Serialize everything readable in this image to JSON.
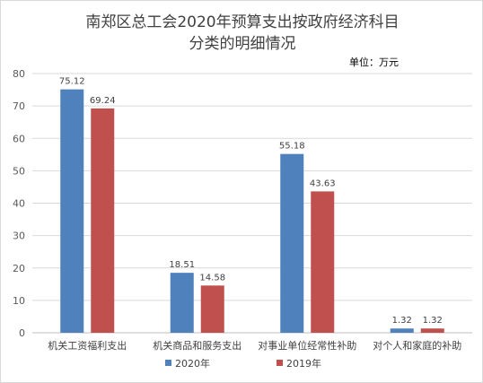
{
  "chart_data": {
    "type": "bar",
    "title_lines": [
      "南郑区总工会2020年预算支出按政府经济科目",
      "分类的明细情况"
    ],
    "unit_label": "单位：万元",
    "categories": [
      "机关工资福利支出",
      "机关商品和服务支出",
      "对事业单位经常性补助",
      "对个人和家庭的补助"
    ],
    "series": [
      {
        "name": "2020年",
        "color": "#4f81bd",
        "values": [
          75.12,
          18.51,
          55.18,
          1.32
        ],
        "labels": [
          "75.12",
          "18.51",
          "55.18",
          "1.32"
        ]
      },
      {
        "name": "2019年",
        "color": "#c0504d",
        "values": [
          69.24,
          14.58,
          43.63,
          1.32
        ],
        "labels": [
          "69.24",
          "14.58",
          "43.63",
          "1.32"
        ]
      }
    ],
    "ylim": [
      0,
      80
    ],
    "yticks": [
      0,
      10,
      20,
      30,
      40,
      50,
      60,
      70,
      80
    ],
    "grid": true,
    "legend_position": "bottom"
  }
}
